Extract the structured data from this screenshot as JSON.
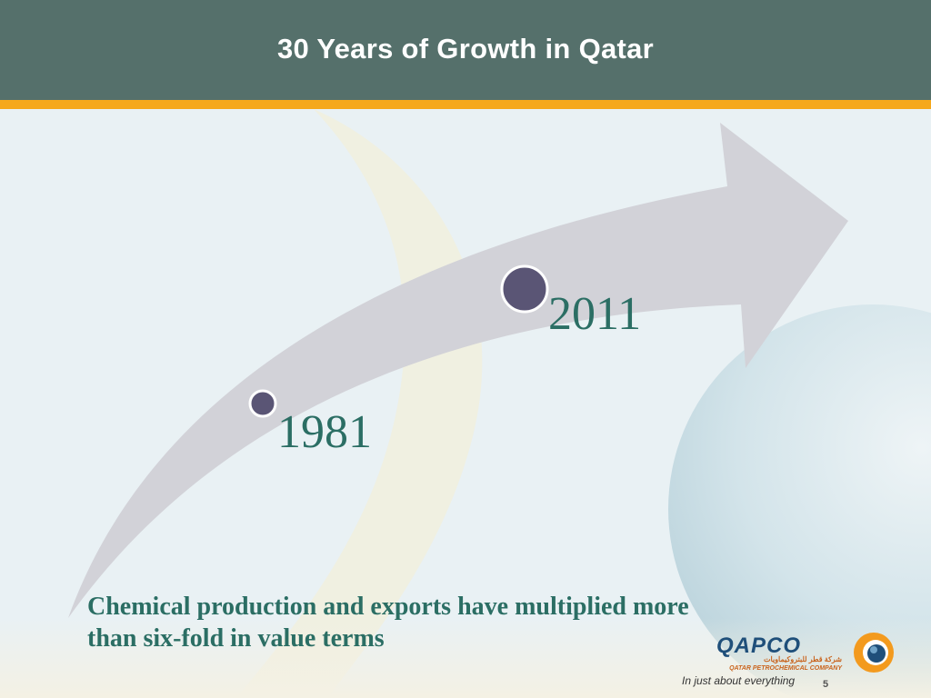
{
  "header": {
    "title": "30 Years of Growth in Qatar"
  },
  "timeline": {
    "start_year": "1981",
    "end_year": "2011"
  },
  "caption": {
    "line1": "Chemical production and exports have multiplied more",
    "line2": "than six-fold in value terms"
  },
  "footer": {
    "logo_text": "QAPCO",
    "logo_arabic": "شركة قطر للبتروكيماويات",
    "logo_subtitle": "QATAR PETROCHEMICAL COMPANY",
    "tagline": "In just about everything",
    "slide_number": "5"
  },
  "colors": {
    "header_bg": "#55706b",
    "accent": "#f5a81c",
    "text_teal": "#2b6e64",
    "marker": "#5a5575",
    "arrow": "#d2d2d8"
  }
}
